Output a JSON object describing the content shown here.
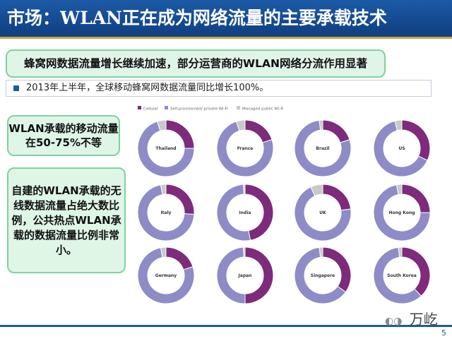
{
  "slide": {
    "title": "市场：WLAN正在成为网络流量的主要承载技术",
    "headline": "蜂窝网数据流量增长继续加速，部分运营商的WLAN网络分流作用显著",
    "subline": "2013年上半年，全球移动蜂窝网数据流量同比增长100%。",
    "note1": "WLAN承载的移动流量在50-75%不等",
    "note2": "自建的WLAN承载的无线数据流量占绝大数比例，公共热点WLAN承载的数据流量比例非常小。",
    "logo_text": "万屹",
    "page_number": "5"
  },
  "colors": {
    "title_bg": "#1a4f97",
    "accent_green_fill": "#dff5e6",
    "accent_green_border": "#7fd2a0",
    "cellular": "#7d2b7a",
    "self_provisioned": "#8f8bc7",
    "managed_public": "#c9c9c9"
  },
  "chart_data": {
    "type": "pie",
    "variant": "donut",
    "legend": [
      "Cellular",
      "Self-provisioned/ private Wi-Fi",
      "Managed public Wi-Fi"
    ],
    "legend_position": "top",
    "countries": [
      {
        "name": "Thailand",
        "values": [
          25,
          70,
          5
        ]
      },
      {
        "name": "France",
        "values": [
          20,
          75,
          5
        ]
      },
      {
        "name": "Brazil",
        "values": [
          20,
          78,
          2
        ]
      },
      {
        "name": "US",
        "values": [
          32,
          64,
          4
        ]
      },
      {
        "name": "Italy",
        "values": [
          26,
          71,
          3
        ]
      },
      {
        "name": "India",
        "values": [
          47,
          52,
          1
        ]
      },
      {
        "name": "UK",
        "values": [
          23,
          70,
          7
        ]
      },
      {
        "name": "Hong Kong",
        "values": [
          25,
          72,
          3
        ]
      },
      {
        "name": "Germany",
        "values": [
          20,
          77,
          3
        ]
      },
      {
        "name": "Japan",
        "values": [
          50,
          49,
          1
        ]
      },
      {
        "name": "Singapore",
        "values": [
          35,
          63,
          2
        ]
      },
      {
        "name": "South Korea",
        "values": [
          38,
          60,
          2
        ]
      }
    ]
  }
}
